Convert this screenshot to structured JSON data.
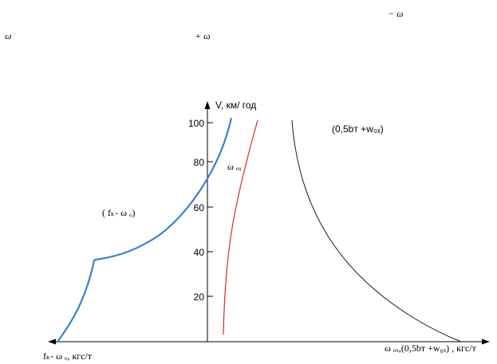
{
  "header_fragments": {
    "top_right": "− ω",
    "left": "ω",
    "middle": "+ ω"
  },
  "diagram": {
    "y_axis_label": "V, км/ год",
    "y_ticks": [
      "100",
      "80",
      "60",
      "40",
      "20"
    ],
    "y_tick_values": [
      100,
      80,
      60,
      40,
      20
    ],
    "left_curve_label": "( fₖ- ω ₒ)",
    "middle_curve_label": "ω ₒₓ",
    "right_curve_label": "(0,5bт +w₀ₓ)",
    "x_axis_left_label": "fₖ- ω ₒ, кгс/т",
    "x_axis_right_label": "ω ₒₓ,(0,5bт +w₀ₓ) , кгс/т",
    "colors": {
      "left_curve": "#3f7fd0",
      "middle_curve": "#d42a2a",
      "right_curve": "#1a1a1a",
      "axes": "#000000"
    }
  }
}
